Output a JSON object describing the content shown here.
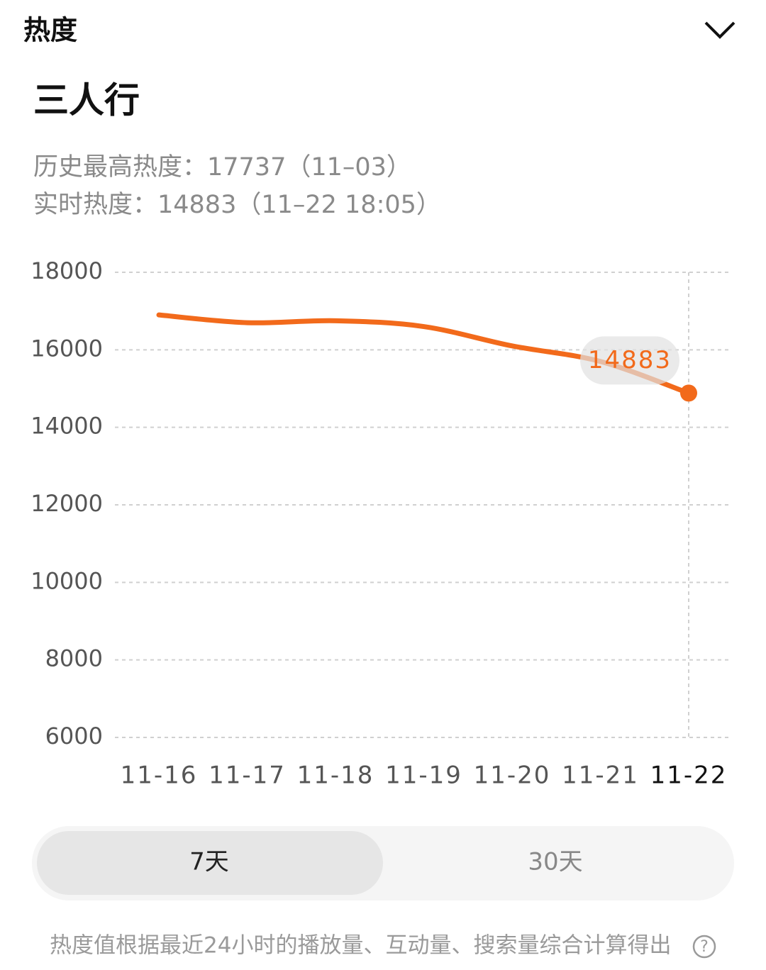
{
  "header": {
    "title": "热度"
  },
  "subject": "三人行",
  "stats": [
    "历史最高热度：17737（11–03）",
    "实时热度：14883（11–22 18:05）"
  ],
  "chart_data": {
    "type": "line",
    "categories": [
      "11-16",
      "11-17",
      "11-18",
      "11-19",
      "11-20",
      "11-21",
      "11-22"
    ],
    "series": [
      {
        "color": "#f26a1b",
        "values": [
          16900,
          16700,
          16750,
          16600,
          16100,
          15700,
          14883
        ]
      }
    ],
    "ylim": [
      6000,
      18000
    ],
    "yticks": [
      6000,
      8000,
      10000,
      12000,
      14000,
      16000,
      18000
    ],
    "grid": true
  },
  "tabs": [
    "7天",
    "30天"
  ],
  "footer": "热度值根据最近24小时的播放量、互动量、搜索量综合计算得出",
  "help_icon": "?"
}
